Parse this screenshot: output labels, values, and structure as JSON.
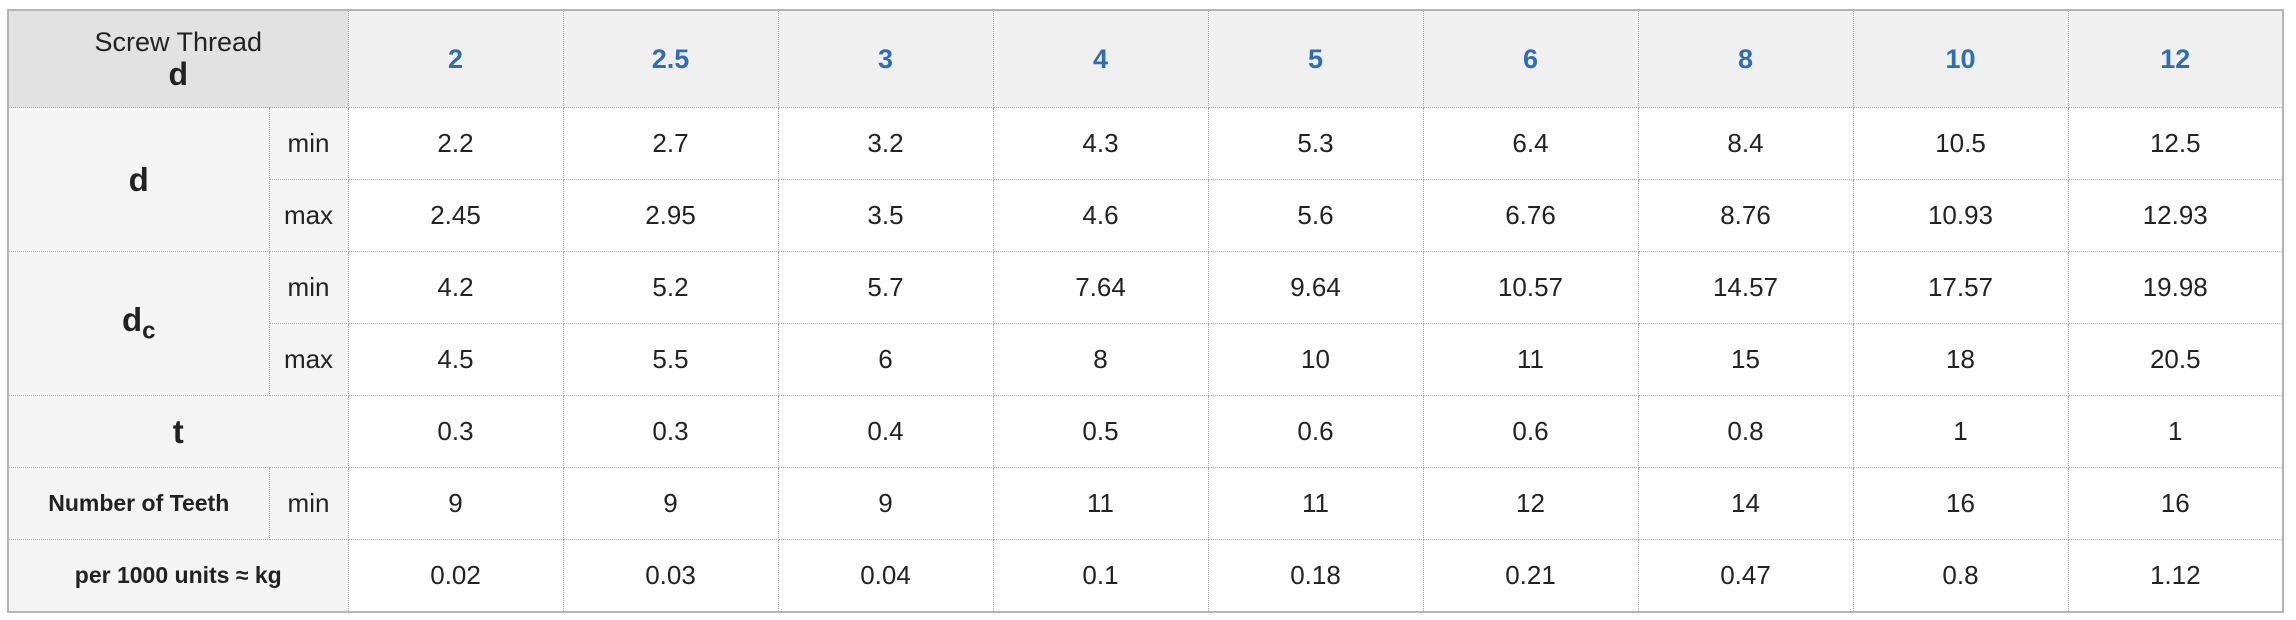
{
  "table": {
    "header": {
      "label": "Screw Thread",
      "symbol": "d",
      "columns": [
        2,
        2.5,
        3,
        4,
        5,
        6,
        8,
        10,
        12
      ]
    },
    "groups": [
      {
        "label": "d",
        "rows": [
          {
            "sub": "min",
            "values": [
              2.2,
              2.7,
              3.2,
              4.3,
              5.3,
              6.4,
              8.4,
              10.5,
              12.5
            ]
          },
          {
            "sub": "max",
            "values": [
              2.45,
              2.95,
              3.5,
              4.6,
              5.6,
              6.76,
              8.76,
              10.93,
              12.93
            ]
          }
        ]
      },
      {
        "label": "d",
        "label_sub": "c",
        "rows": [
          {
            "sub": "min",
            "values": [
              4.2,
              5.2,
              5.7,
              7.64,
              9.64,
              10.57,
              14.57,
              17.57,
              19.98
            ]
          },
          {
            "sub": "max",
            "values": [
              4.5,
              5.5,
              6,
              8,
              10,
              11,
              15,
              18,
              20.5
            ]
          }
        ]
      },
      {
        "label": "t",
        "rows": [
          {
            "values": [
              0.3,
              0.3,
              0.4,
              0.5,
              0.6,
              0.6,
              0.8,
              1,
              1
            ]
          }
        ]
      },
      {
        "label": "Number of Teeth",
        "rows": [
          {
            "sub": "min",
            "values": [
              9,
              9,
              9,
              11,
              11,
              12,
              14,
              16,
              16
            ]
          }
        ]
      },
      {
        "label": "per 1000 units ≈ kg",
        "rows": [
          {
            "values": [
              0.02,
              0.03,
              0.04,
              0.1,
              0.18,
              0.21,
              0.47,
              0.8,
              1.12
            ]
          }
        ]
      }
    ]
  }
}
